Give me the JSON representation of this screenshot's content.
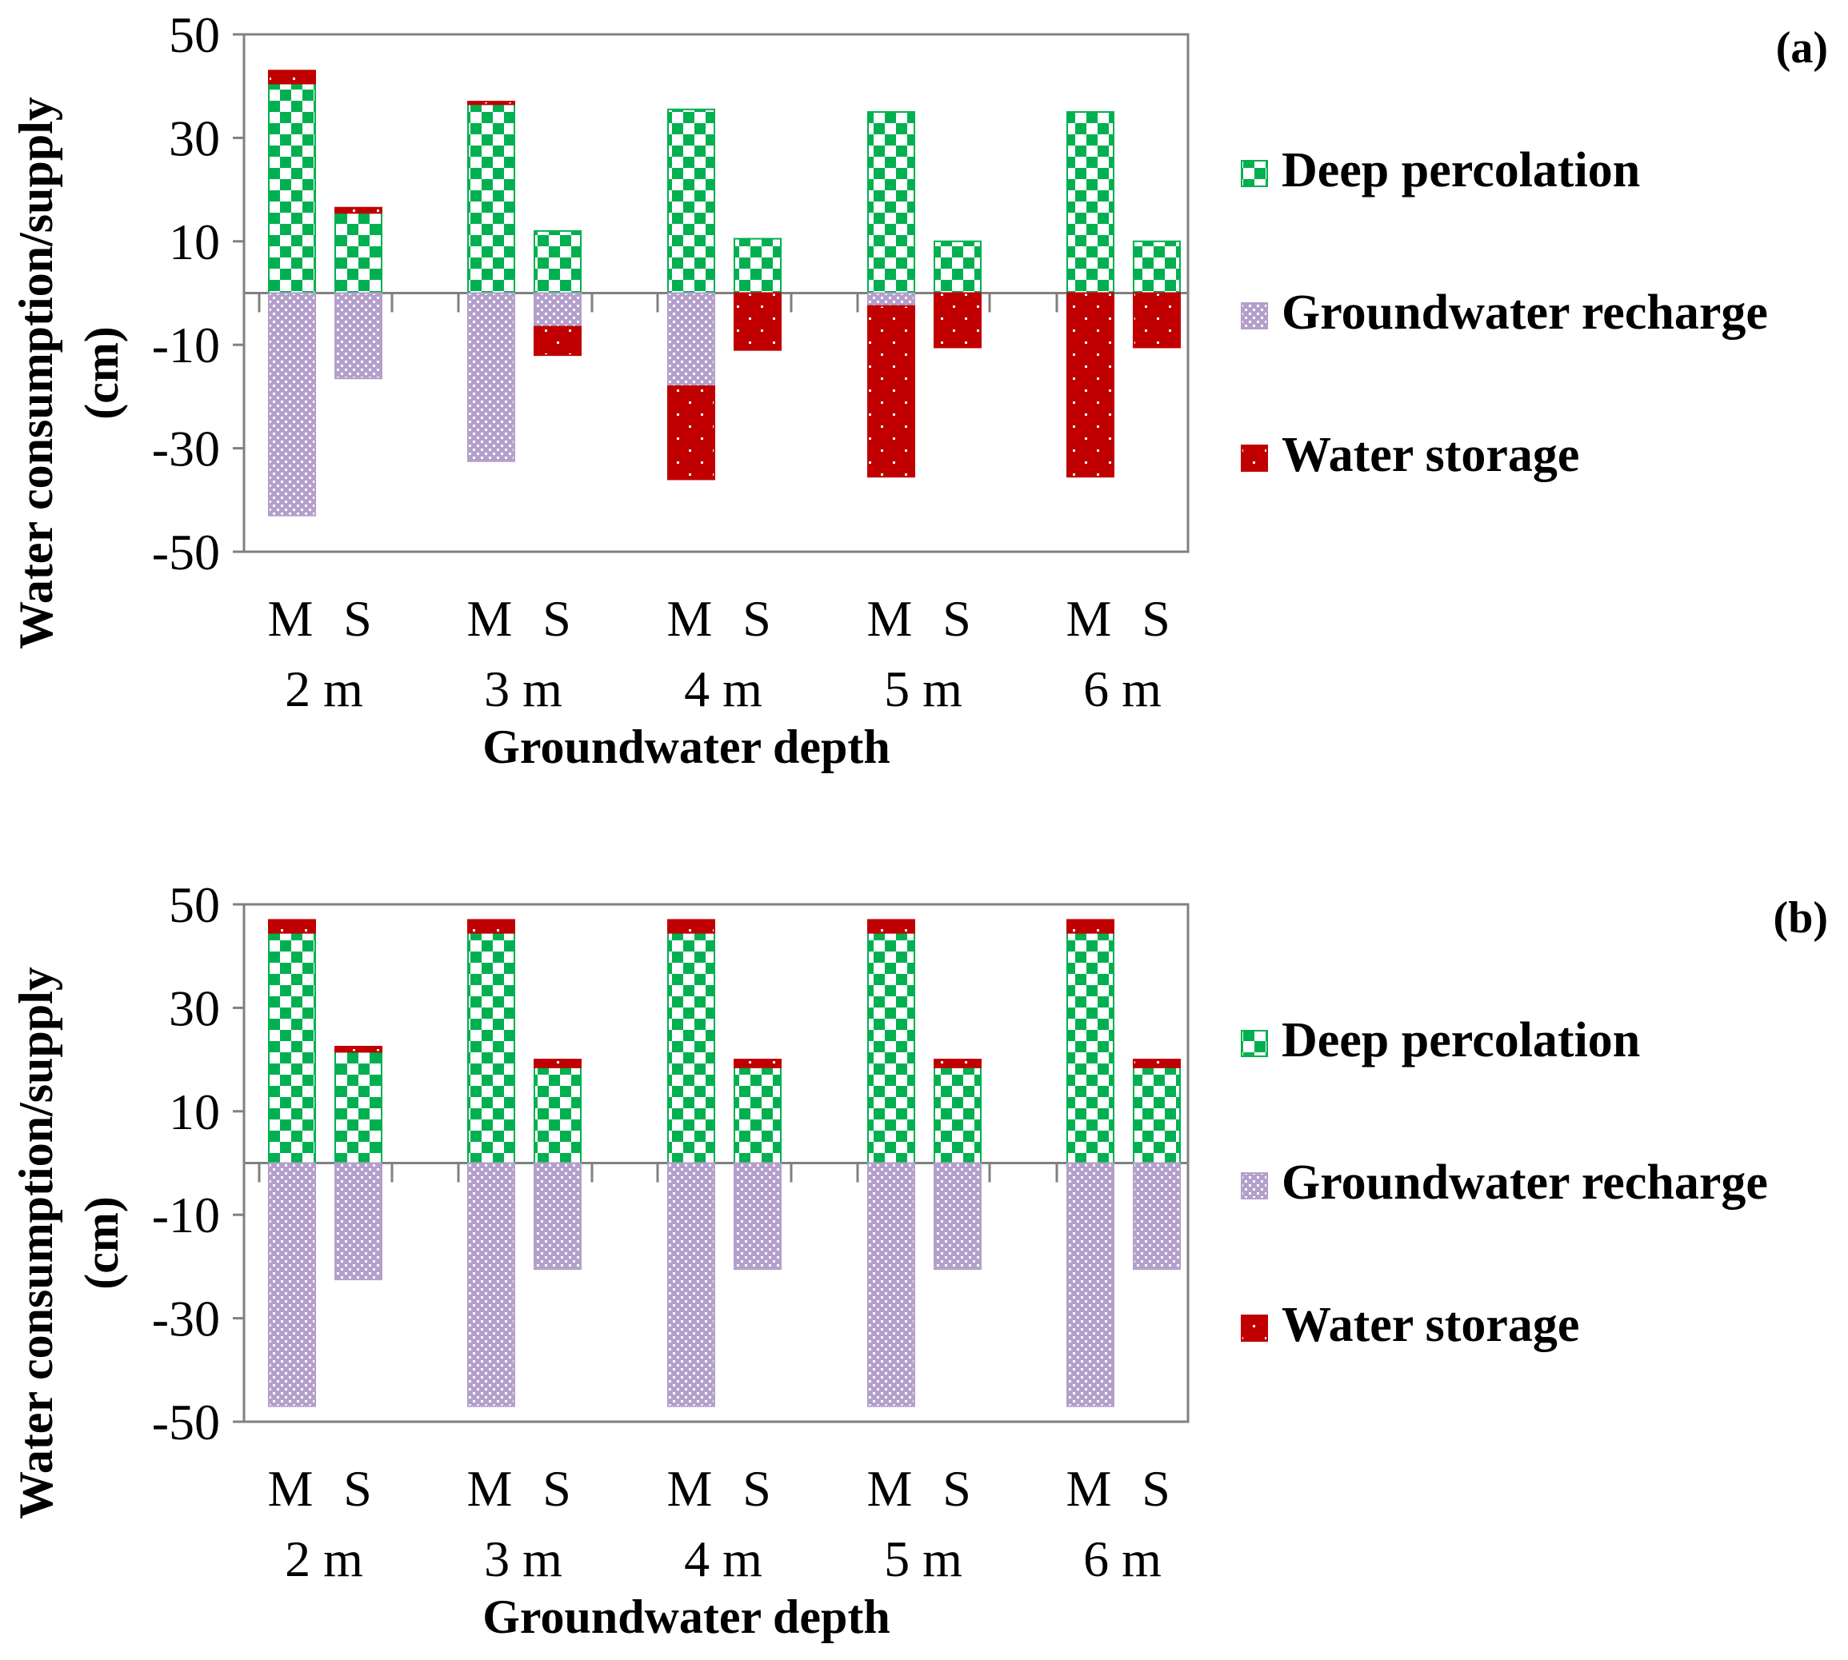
{
  "chart_data": [
    {
      "type": "bar",
      "stacked": true,
      "panel_label": "(a)",
      "ylabel": "Water consumption/supply (cm)",
      "xlabel": "Groundwater depth",
      "ylim": [
        -50,
        50
      ],
      "yticks": [
        "50",
        "30",
        "10",
        "-10",
        "-30",
        "-50"
      ],
      "ytick_values": [
        50,
        30,
        10,
        -10,
        -30,
        -50
      ],
      "groups": [
        "2 m",
        "3 m",
        "4 m",
        "5 m",
        "6 m"
      ],
      "categories": [
        "M",
        "S",
        "M",
        "S",
        "M",
        "S",
        "M",
        "S",
        "M",
        "S"
      ],
      "series": [
        {
          "name": "Deep percolation",
          "color": "#00b050",
          "values": [
            40.5,
            15.5,
            36.5,
            12,
            35.5,
            10.5,
            35,
            10,
            35,
            10
          ]
        },
        {
          "name": "Groundwater recharge",
          "color": "#b4a0cc",
          "values": [
            -43,
            -16.5,
            -32.5,
            -6.5,
            -18,
            0,
            -2.5,
            0,
            0,
            0
          ]
        },
        {
          "name": "Water storage",
          "color": "#c00000",
          "values": [
            2.5,
            1,
            0.5,
            -5.5,
            -18,
            -11,
            -33,
            -10.5,
            -35.5,
            -10.5
          ]
        }
      ],
      "legend": [
        "Deep percolation",
        "Groundwater recharge",
        "Water storage"
      ],
      "legend_position": "right"
    },
    {
      "type": "bar",
      "stacked": true,
      "panel_label": "(b)",
      "ylabel": "Water consumption/supply (cm)",
      "xlabel": "Groundwater depth",
      "ylim": [
        -50,
        50
      ],
      "yticks": [
        "50",
        "30",
        "10",
        "-10",
        "-30",
        "-50"
      ],
      "ytick_values": [
        50,
        30,
        10,
        -10,
        -30,
        -50
      ],
      "groups": [
        "2 m",
        "3 m",
        "4 m",
        "5 m",
        "6 m"
      ],
      "categories": [
        "M",
        "S",
        "M",
        "S",
        "M",
        "S",
        "M",
        "S",
        "M",
        "S"
      ],
      "series": [
        {
          "name": "Deep percolation",
          "color": "#00b050",
          "values": [
            44.5,
            21.5,
            44.5,
            18.5,
            44.5,
            18.5,
            44.5,
            18.5,
            44.5,
            18.5
          ]
        },
        {
          "name": "Groundwater recharge",
          "color": "#b4a0cc",
          "values": [
            -47,
            -22.5,
            -47,
            -20.5,
            -47,
            -20.5,
            -47,
            -20.5,
            -47,
            -20.5
          ]
        },
        {
          "name": "Water storage",
          "color": "#c00000",
          "values": [
            2.5,
            1,
            2.5,
            1.5,
            2.5,
            1.5,
            2.5,
            1.5,
            2.5,
            1.5
          ]
        }
      ],
      "legend": [
        "Deep percolation",
        "Groundwater recharge",
        "Water storage"
      ],
      "legend_position": "right"
    }
  ]
}
